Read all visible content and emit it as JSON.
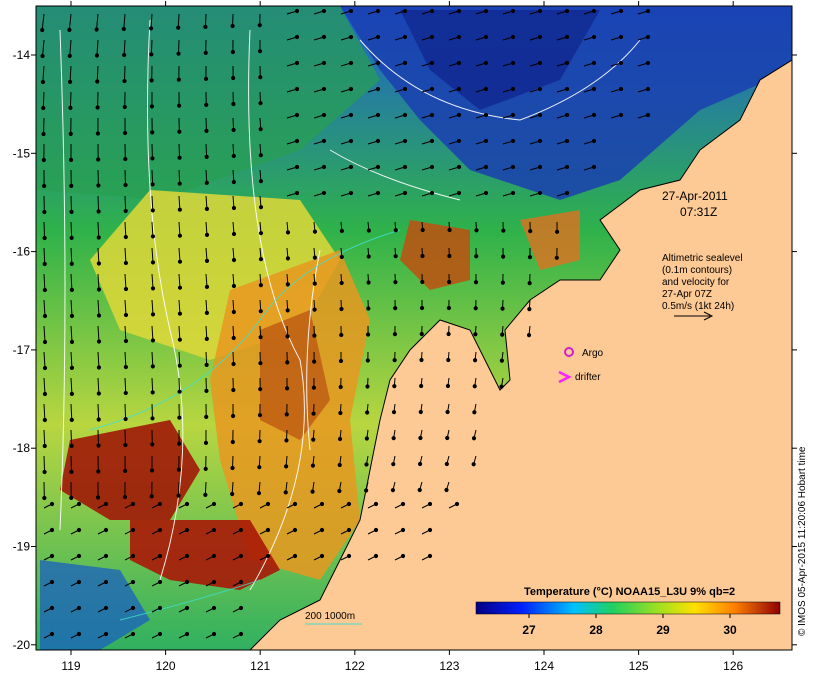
{
  "map": {
    "x_ticks": [
      "119",
      "120",
      "121",
      "122",
      "123",
      "124",
      "125",
      "126"
    ],
    "y_ticks": [
      "-14",
      "-15",
      "-16",
      "-17",
      "-18",
      "-19",
      "-20"
    ],
    "timestamp_date": "27-Apr-2011",
    "timestamp_time": "07:31Z",
    "altimetry_note": [
      "Altimetric sealevel",
      "(0.1m contours)",
      "and velocity for",
      "27-Apr 07Z",
      "0.5m/s (1kt 24h)"
    ],
    "argo_label": "Argo",
    "drifter_label": "drifter",
    "depth_label": "200  1000m",
    "colorbar_title": "Temperature (°C) NOAA15_L3U 9% qb=2",
    "colorbar_ticks": [
      "27",
      "28",
      "29",
      "30"
    ],
    "credit": "© IMOS 05-Apr-2015 11:20:06 Hobart time"
  },
  "colors": {
    "land": "#fdc994",
    "contour": "#ffffff",
    "isobath": "#40e0d0",
    "argo": "#d020d0",
    "drifter": "#ff20ff"
  }
}
